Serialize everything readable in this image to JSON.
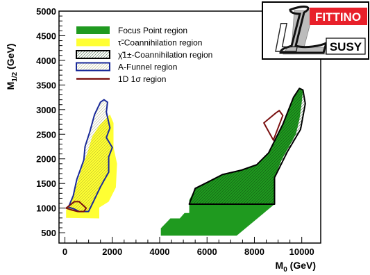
{
  "chart_data": {
    "type": "area",
    "title": "",
    "xlabel": "M",
    "xlabel_sub": "0",
    "xlabel_unit": " (GeV)",
    "ylabel": "M",
    "ylabel_sub": "1/2",
    "ylabel_unit": " (GeV)",
    "xlim": [
      -250,
      10800
    ],
    "ylim": [
      290,
      5000
    ],
    "x_ticks": [
      0,
      2000,
      4000,
      6000,
      8000,
      10000
    ],
    "x_tick_labels": [
      "0",
      "2000",
      "4000",
      "6000",
      "8000",
      "10000"
    ],
    "y_ticks": [
      500,
      1000,
      1500,
      2000,
      2500,
      3000,
      3500,
      4000,
      4500,
      5000
    ],
    "y_tick_labels": [
      "500",
      "1000",
      "1500",
      "2000",
      "2500",
      "3000",
      "3500",
      "4000",
      "4500",
      "5000"
    ],
    "grid": false,
    "legend_position": "top-left",
    "colors": {
      "focus_point": "#1f9a1f",
      "stau": "#ffff33",
      "chargino": "#000000",
      "funnel": "#1a2a9a",
      "one_sigma": "#7a1010",
      "logo_red": "#e8202a"
    },
    "series": [
      {
        "name": "Focus Point region",
        "style": "fill-green",
        "polygon": [
          [
            4050,
            440
          ],
          [
            7250,
            440
          ],
          [
            8850,
            1080
          ],
          [
            8850,
            1620
          ],
          [
            9150,
            1980
          ],
          [
            9750,
            2500
          ],
          [
            9900,
            2800
          ],
          [
            10000,
            3150
          ],
          [
            10050,
            3400
          ],
          [
            9900,
            3430
          ],
          [
            9650,
            3250
          ],
          [
            9200,
            2700
          ],
          [
            8600,
            2120
          ],
          [
            8100,
            1880
          ],
          [
            7450,
            1770
          ],
          [
            6650,
            1680
          ],
          [
            6000,
            1520
          ],
          [
            5500,
            1400
          ],
          [
            5250,
            1160
          ],
          [
            5250,
            900
          ],
          [
            5050,
            900
          ],
          [
            4850,
            790
          ],
          [
            4450,
            790
          ],
          [
            4050,
            590
          ]
        ]
      },
      {
        "name": "τ̃-Coannihilation region",
        "style": "fill-yellow",
        "polygon": [
          [
            50,
            800
          ],
          [
            50,
            960
          ],
          [
            300,
            1150
          ],
          [
            500,
            1480
          ],
          [
            700,
            1800
          ],
          [
            950,
            2120
          ],
          [
            1150,
            2450
          ],
          [
            1450,
            2680
          ],
          [
            1900,
            2900
          ],
          [
            2050,
            2730
          ],
          [
            2050,
            2240
          ],
          [
            2200,
            1900
          ],
          [
            2150,
            1420
          ],
          [
            1850,
            1130
          ],
          [
            1450,
            1010
          ],
          [
            1450,
            790
          ]
        ]
      },
      {
        "name": "χ̃1±-Coannihilation region",
        "style": "hatch-black",
        "polygon": [
          [
            8850,
            1080
          ],
          [
            5250,
            1080
          ],
          [
            5500,
            1400
          ],
          [
            6000,
            1520
          ],
          [
            6650,
            1680
          ],
          [
            7450,
            1770
          ],
          [
            8100,
            1880
          ],
          [
            8600,
            2120
          ],
          [
            9200,
            2700
          ],
          [
            9650,
            3250
          ],
          [
            9900,
            3430
          ],
          [
            10050,
            3400
          ],
          [
            10150,
            3120
          ],
          [
            9950,
            2600
          ],
          [
            9400,
            2150
          ],
          [
            8850,
            1620
          ]
        ]
      },
      {
        "name": "A-Funnel region",
        "style": "outline-blue",
        "polygon": [
          [
            150,
            1020
          ],
          [
            350,
            1250
          ],
          [
            500,
            1580
          ],
          [
            800,
            1980
          ],
          [
            850,
            2250
          ],
          [
            1050,
            2550
          ],
          [
            1250,
            2900
          ],
          [
            1500,
            3150
          ],
          [
            1650,
            3200
          ],
          [
            1800,
            3150
          ],
          [
            1750,
            2950
          ],
          [
            1900,
            2630
          ],
          [
            1750,
            2430
          ],
          [
            2000,
            2230
          ],
          [
            1850,
            2040
          ],
          [
            1850,
            1730
          ],
          [
            1650,
            1560
          ],
          [
            1500,
            1430
          ],
          [
            1200,
            1130
          ],
          [
            1000,
            930
          ],
          [
            600,
            930
          ],
          [
            400,
            980
          ]
        ]
      },
      {
        "name": "1D 1σ region",
        "style": "outline-darkred",
        "polygons": [
          [
            [
              50,
              1000
            ],
            [
              400,
              1130
            ],
            [
              600,
              1130
            ],
            [
              900,
              1000
            ],
            [
              800,
              930
            ],
            [
              550,
              930
            ],
            [
              300,
              960
            ]
          ],
          [
            [
              8400,
              2730
            ],
            [
              8800,
              2380
            ],
            [
              9200,
              2880
            ],
            [
              9050,
              2980
            ],
            [
              8900,
              2930
            ]
          ]
        ]
      }
    ]
  },
  "logo": {
    "letter": "L",
    "top_text": "FITTINO",
    "bottom_text": "SUSY"
  }
}
